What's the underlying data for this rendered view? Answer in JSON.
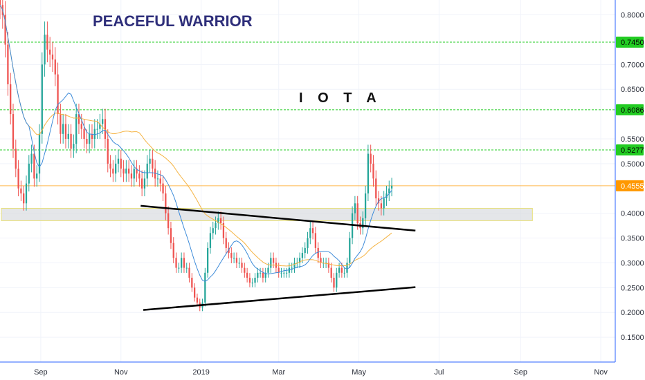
{
  "chart_data": {
    "type": "candlestick",
    "title": "PEACEFUL WARRIOR",
    "symbol": "I O T A",
    "ylim": [
      0.1,
      0.83
    ],
    "xlim": [
      "2018-08-01",
      "2019-11-12"
    ],
    "price_ticks": [
      "0.8000",
      "0.7000",
      "0.6500",
      "0.5500",
      "0.5000",
      "0.4000",
      "0.3500",
      "0.3000",
      "0.2500",
      "0.2000",
      "0.1500"
    ],
    "price_tick_values": [
      0.8,
      0.7,
      0.65,
      0.55,
      0.5,
      0.4,
      0.35,
      0.3,
      0.25,
      0.2,
      0.15
    ],
    "time_ticks": [
      {
        "label": "Sep",
        "date": "2018-09-01"
      },
      {
        "label": "Nov",
        "date": "2018-11-01"
      },
      {
        "label": "2019",
        "date": "2019-01-01"
      },
      {
        "label": "Mar",
        "date": "2019-03-01"
      },
      {
        "label": "May",
        "date": "2019-05-01"
      },
      {
        "label": "Jul",
        "date": "2019-07-01"
      },
      {
        "label": "Sep",
        "date": "2019-09-01"
      },
      {
        "label": "Nov",
        "date": "2019-11-01"
      }
    ],
    "levels": [
      {
        "label": "0.7450",
        "value": 0.745,
        "color": "#22cc22"
      },
      {
        "label": "0.6086",
        "value": 0.6086,
        "color": "#22cc22"
      },
      {
        "label": "0.5277",
        "value": 0.5277,
        "color": "#22cc22"
      }
    ],
    "last_price": {
      "label": "0.4555",
      "value": 0.4555,
      "color": "#ff9800"
    },
    "support_zone": {
      "from": 0.385,
      "to": 0.41,
      "end_date": "2019-09-10"
    },
    "trendlines": [
      {
        "from": {
          "date": "2018-11-16",
          "value": 0.415
        },
        "to": {
          "date": "2019-06-13",
          "value": 0.365
        }
      },
      {
        "from": {
          "date": "2018-11-18",
          "value": 0.205
        },
        "to": {
          "date": "2019-06-13",
          "value": 0.251
        }
      }
    ],
    "candles_start": "2018-08-01",
    "candle_interval_days": 2,
    "closes": [
      0.82,
      0.8,
      0.74,
      0.66,
      0.6,
      0.53,
      0.49,
      0.45,
      0.44,
      0.42,
      0.46,
      0.5,
      0.52,
      0.47,
      0.48,
      0.56,
      0.7,
      0.76,
      0.73,
      0.72,
      0.71,
      0.68,
      0.6,
      0.56,
      0.58,
      0.55,
      0.56,
      0.53,
      0.54,
      0.6,
      0.58,
      0.57,
      0.55,
      0.54,
      0.56,
      0.55,
      0.57,
      0.57,
      0.58,
      0.59,
      0.55,
      0.5,
      0.49,
      0.48,
      0.5,
      0.51,
      0.49,
      0.48,
      0.49,
      0.48,
      0.47,
      0.49,
      0.48,
      0.47,
      0.45,
      0.47,
      0.5,
      0.51,
      0.49,
      0.47,
      0.47,
      0.46,
      0.44,
      0.4,
      0.37,
      0.34,
      0.31,
      0.29,
      0.29,
      0.31,
      0.29,
      0.29,
      0.27,
      0.25,
      0.23,
      0.22,
      0.21,
      0.22,
      0.28,
      0.33,
      0.36,
      0.37,
      0.38,
      0.39,
      0.38,
      0.35,
      0.33,
      0.32,
      0.31,
      0.31,
      0.3,
      0.3,
      0.29,
      0.28,
      0.27,
      0.26,
      0.26,
      0.27,
      0.28,
      0.28,
      0.27,
      0.28,
      0.29,
      0.31,
      0.3,
      0.29,
      0.28,
      0.28,
      0.28,
      0.28,
      0.29,
      0.29,
      0.3,
      0.3,
      0.31,
      0.32,
      0.33,
      0.35,
      0.37,
      0.36,
      0.33,
      0.31,
      0.3,
      0.3,
      0.3,
      0.29,
      0.27,
      0.25,
      0.28,
      0.29,
      0.28,
      0.28,
      0.3,
      0.35,
      0.4,
      0.42,
      0.38,
      0.37,
      0.39,
      0.44,
      0.52,
      0.5,
      0.47,
      0.43,
      0.42,
      0.41,
      0.43,
      0.44,
      0.45,
      0.4555
    ],
    "ma_fast_color": "#3d8bd9",
    "ma_slow_color": "#f5b342",
    "ma_fast_period": 12,
    "ma_slow_period": 38,
    "colors": {
      "up": "#26a69a",
      "down": "#ef5350",
      "trendline": "#000000",
      "zone_fill": "#d9dbe0",
      "zone_border": "#e9e07a",
      "axis": "#2962ff",
      "grid": "#f0f3fa"
    }
  }
}
